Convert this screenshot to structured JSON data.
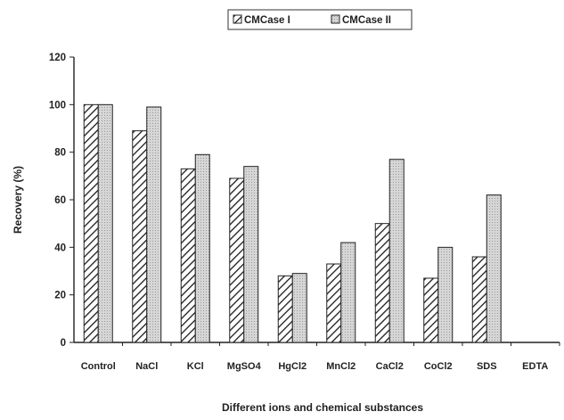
{
  "chart_data": {
    "type": "bar",
    "xlabel": "Different ions and chemical substances",
    "ylabel": "Recovery (%)",
    "ylim": [
      0,
      120
    ],
    "yticks": [
      0,
      20,
      40,
      60,
      80,
      100,
      120
    ],
    "grid": false,
    "legend_position": "top-center",
    "categories": [
      "Control",
      "NaCl",
      "KCl",
      "MgSO4",
      "HgCl2",
      "MnCl2",
      "CaCl2",
      "CoCl2",
      "SDS",
      "EDTA"
    ],
    "series": [
      {
        "name": "CMCase I",
        "values": [
          100,
          89,
          73,
          69,
          28,
          33,
          50,
          27,
          36,
          0
        ],
        "pattern": "diagonal-hatch",
        "color": "#1a1a1a"
      },
      {
        "name": "CMCase II",
        "values": [
          100,
          99,
          79,
          74,
          29,
          42,
          77,
          40,
          62,
          0
        ],
        "pattern": "dotted-fill",
        "color": "#cfcfcf"
      }
    ]
  }
}
